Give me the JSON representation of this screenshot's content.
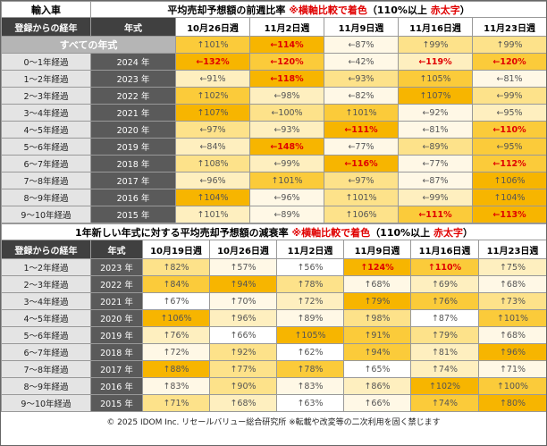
{
  "top": {
    "corner": "輸入車",
    "title_parts": [
      "平均売却予想額の前週比率 ",
      "※横軸比較で着色",
      "（110%以上 ",
      "赤太字",
      "）"
    ],
    "headers": [
      "登録からの経年",
      "年式",
      "10月26日週",
      "11月2日週",
      "11月9日週",
      "11月16日週",
      "11月23日週"
    ],
    "all_row": {
      "label": "すべての年式",
      "cells": [
        "↑101%",
        "←114%",
        "←87%",
        "↑99%",
        "↑99%"
      ]
    },
    "rows": [
      {
        "age": "0〜1年経過",
        "year": "2024 年",
        "cells": [
          "←132%",
          "←120%",
          "←42%",
          "←119%",
          "←120%"
        ]
      },
      {
        "age": "1〜2年経過",
        "year": "2023 年",
        "cells": [
          "←91%",
          "←118%",
          "←93%",
          "↑105%",
          "←81%"
        ]
      },
      {
        "age": "2〜3年経過",
        "year": "2022 年",
        "cells": [
          "↑102%",
          "←98%",
          "←82%",
          "↑107%",
          "←99%"
        ]
      },
      {
        "age": "3〜4年経過",
        "year": "2021 年",
        "cells": [
          "↑107%",
          "←100%",
          "↑101%",
          "←92%",
          "←95%"
        ]
      },
      {
        "age": "4〜5年経過",
        "year": "2020 年",
        "cells": [
          "←97%",
          "←93%",
          "←111%",
          "←81%",
          "←110%"
        ]
      },
      {
        "age": "5〜6年経過",
        "year": "2019 年",
        "cells": [
          "←84%",
          "←148%",
          "←77%",
          "←89%",
          "←95%"
        ]
      },
      {
        "age": "6〜7年経過",
        "year": "2018 年",
        "cells": [
          "↑108%",
          "←99%",
          "←116%",
          "←77%",
          "←112%"
        ]
      },
      {
        "age": "7〜8年経過",
        "year": "2017 年",
        "cells": [
          "←96%",
          "↑101%",
          "←97%",
          "←87%",
          "↑106%"
        ]
      },
      {
        "age": "8〜9年経過",
        "year": "2016 年",
        "cells": [
          "↑104%",
          "←96%",
          "↑101%",
          "←99%",
          "↑104%"
        ]
      },
      {
        "age": "9〜10年経過",
        "year": "2015 年",
        "cells": [
          "↑101%",
          "←89%",
          "↑106%",
          "←111%",
          "←113%"
        ]
      }
    ]
  },
  "bottom": {
    "title_parts": [
      "1年新しい年式に対する平均売却予想額の減衰率 ",
      "※横軸比較で着色",
      "（110%以上 ",
      "赤太字",
      "）"
    ],
    "headers": [
      "登録からの経年",
      "年式",
      "10月19日週",
      "10月26日週",
      "11月2日週",
      "11月9日週",
      "11月16日週",
      "11月23日週"
    ],
    "rows": [
      {
        "age": "1〜2年経過",
        "year": "2023 年",
        "cells": [
          "↑82%",
          "↑57%",
          "↑56%",
          "↑124%",
          "↑110%",
          "↑75%"
        ]
      },
      {
        "age": "2〜3年経過",
        "year": "2022 年",
        "cells": [
          "↑84%",
          "↑94%",
          "↑78%",
          "↑68%",
          "↑69%",
          "↑68%"
        ]
      },
      {
        "age": "3〜4年経過",
        "year": "2021 年",
        "cells": [
          "↑67%",
          "↑70%",
          "↑72%",
          "↑79%",
          "↑76%",
          "↑73%"
        ]
      },
      {
        "age": "4〜5年経過",
        "year": "2020 年",
        "cells": [
          "↑106%",
          "↑96%",
          "↑89%",
          "↑98%",
          "↑87%",
          "↑101%"
        ]
      },
      {
        "age": "5〜6年経過",
        "year": "2019 年",
        "cells": [
          "↑76%",
          "↑66%",
          "↑105%",
          "↑91%",
          "↑79%",
          "↑68%"
        ]
      },
      {
        "age": "6〜7年経過",
        "year": "2018 年",
        "cells": [
          "↑72%",
          "↑92%",
          "↑62%",
          "↑94%",
          "↑81%",
          "↑96%"
        ]
      },
      {
        "age": "7〜8年経過",
        "year": "2017 年",
        "cells": [
          "↑88%",
          "↑77%",
          "↑78%",
          "↑65%",
          "↑74%",
          "↑71%"
        ]
      },
      {
        "age": "8〜9年経過",
        "year": "2016 年",
        "cells": [
          "↑83%",
          "↑90%",
          "↑83%",
          "↑86%",
          "↑102%",
          "↑100%"
        ]
      },
      {
        "age": "9〜10年経過",
        "year": "2015 年",
        "cells": [
          "↑71%",
          "↑68%",
          "↑63%",
          "↑66%",
          "↑74%",
          "↑80%"
        ]
      }
    ]
  },
  "footer": "© 2025 IDOM Inc. リセールバリュー総合研究所 ※転載や改変等の二次利用を固く禁じます"
}
